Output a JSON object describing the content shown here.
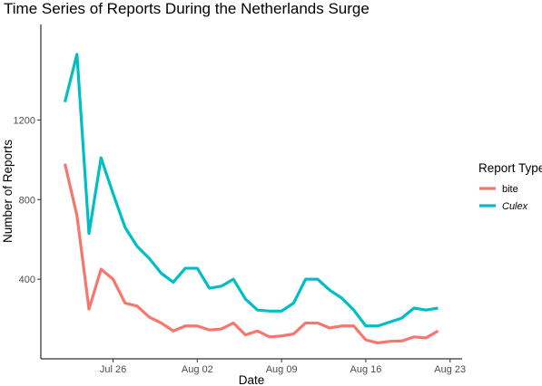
{
  "chart_data": {
    "type": "line",
    "title": "Time Series of Reports During the Netherlands Surge",
    "xlabel": "Date",
    "ylabel": "Number of Reports",
    "x_axis": {
      "type": "date",
      "range": [
        "2020-07-20",
        "2020-08-24"
      ],
      "ticks": [
        {
          "date": "2020-07-26",
          "label": "Jul 26"
        },
        {
          "date": "2020-08-02",
          "label": "Aug 02"
        },
        {
          "date": "2020-08-09",
          "label": "Aug 09"
        },
        {
          "date": "2020-08-16",
          "label": "Aug 16"
        },
        {
          "date": "2020-08-23",
          "label": "Aug 23"
        }
      ]
    },
    "y_axis": {
      "range": [
        0,
        1680
      ],
      "ticks": [
        {
          "value": 400,
          "label": "400"
        },
        {
          "value": 800,
          "label": "800"
        },
        {
          "value": 1200,
          "label": "1200"
        }
      ]
    },
    "grid": false,
    "legend": {
      "title": "Report Type",
      "position": "right",
      "entries": [
        {
          "label": "bite",
          "italic": false
        },
        {
          "label": "Culex",
          "italic": true
        }
      ]
    },
    "x": [
      "2020-07-22",
      "2020-07-23",
      "2020-07-24",
      "2020-07-25",
      "2020-07-26",
      "2020-07-27",
      "2020-07-28",
      "2020-07-29",
      "2020-07-30",
      "2020-07-31",
      "2020-08-01",
      "2020-08-02",
      "2020-08-03",
      "2020-08-04",
      "2020-08-05",
      "2020-08-06",
      "2020-08-07",
      "2020-08-08",
      "2020-08-09",
      "2020-08-10",
      "2020-08-11",
      "2020-08-12",
      "2020-08-13",
      "2020-08-14",
      "2020-08-15",
      "2020-08-16",
      "2020-08-17",
      "2020-08-18",
      "2020-08-19",
      "2020-08-20",
      "2020-08-21",
      "2020-08-22"
    ],
    "series": [
      {
        "name": "bite",
        "color": "#F8766D",
        "values": [
          980,
          720,
          250,
          450,
          400,
          280,
          265,
          210,
          180,
          140,
          165,
          165,
          145,
          150,
          180,
          120,
          140,
          110,
          115,
          125,
          180,
          180,
          155,
          165,
          165,
          95,
          80,
          88,
          90,
          110,
          105,
          140
        ]
      },
      {
        "name": "Culex",
        "color": "#00BFC4",
        "values": [
          1290,
          1530,
          630,
          1010,
          830,
          660,
          565,
          505,
          430,
          385,
          455,
          455,
          355,
          365,
          400,
          300,
          245,
          240,
          240,
          280,
          400,
          400,
          345,
          305,
          245,
          165,
          165,
          185,
          205,
          255,
          245,
          255
        ]
      }
    ]
  }
}
